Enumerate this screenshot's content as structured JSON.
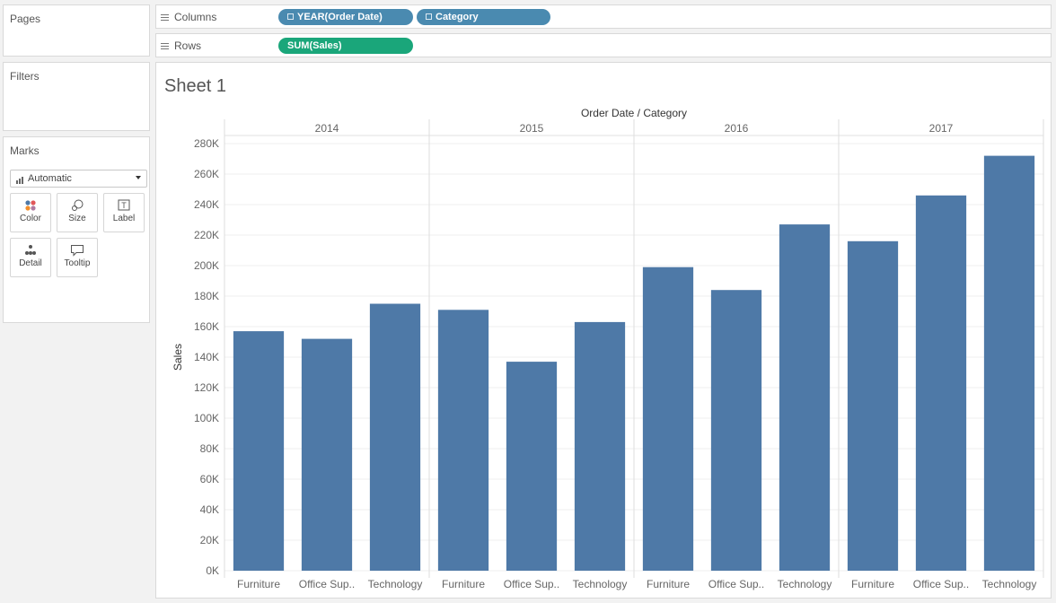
{
  "cards": {
    "pages": "Pages",
    "filters": "Filters",
    "marks": "Marks",
    "mark_type": "Automatic",
    "buttons": {
      "color": "Color",
      "size": "Size",
      "label": "Label",
      "detail": "Detail",
      "tooltip": "Tooltip"
    }
  },
  "shelves": {
    "columns_label": "Columns",
    "rows_label": "Rows",
    "columns_pills": [
      "YEAR(Order Date)",
      "Category"
    ],
    "rows_pills": [
      "SUM(Sales)"
    ]
  },
  "colors": {
    "bar": "#4e79a7",
    "dimension_pill": "#4a8ab0",
    "measure_pill": "#1aa67a"
  },
  "view": {
    "sheet_title": "Sheet 1"
  },
  "chart_data": {
    "type": "bar",
    "header_title": "Order Date / Category",
    "ylabel": "Sales",
    "ylim": [
      0,
      280000
    ],
    "yticks": [
      0,
      20000,
      40000,
      60000,
      80000,
      100000,
      120000,
      140000,
      160000,
      180000,
      200000,
      220000,
      240000,
      260000,
      280000
    ],
    "ytick_labels": [
      "0K",
      "20K",
      "40K",
      "60K",
      "80K",
      "100K",
      "120K",
      "140K",
      "160K",
      "180K",
      "200K",
      "220K",
      "240K",
      "260K",
      "280K"
    ],
    "groups": [
      "2014",
      "2015",
      "2016",
      "2017"
    ],
    "categories": [
      "Furniture",
      "Office Sup..",
      "Technology"
    ],
    "values": [
      [
        157000,
        152000,
        175000
      ],
      [
        171000,
        137000,
        163000
      ],
      [
        199000,
        184000,
        227000
      ],
      [
        216000,
        246000,
        272000
      ]
    ],
    "grid": true
  }
}
